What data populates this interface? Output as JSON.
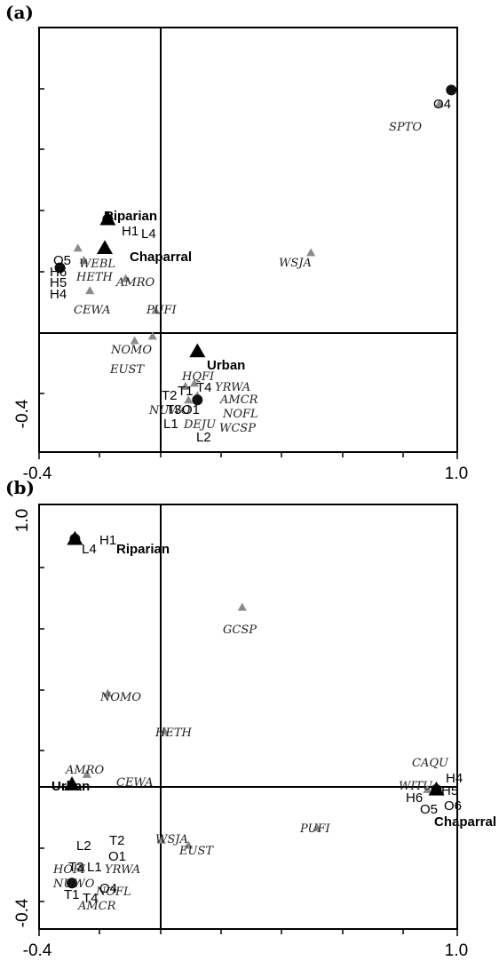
{
  "chart_data": [
    {
      "type": "scatter",
      "panel_label": "(a)",
      "xlim": [
        -0.4,
        1.0
      ],
      "x_tick_labels": [
        "-0.4",
        "1.0"
      ],
      "y_tick_labels": [
        "-0.4"
      ],
      "habitats": [
        {
          "label": "Riparian",
          "x": -0.17,
          "y": 0.75
        },
        {
          "label": "Chaparral",
          "x": -0.18,
          "y": 0.56
        },
        {
          "label": "Urban",
          "x": 0.13,
          "y": -0.12
        }
      ],
      "species": [
        {
          "label": "SPTO",
          "x": 0.94,
          "y": 1.51
        },
        {
          "label": "WSJA",
          "x": 0.51,
          "y": 0.53
        },
        {
          "label": "WEBL",
          "x": -0.27,
          "y": 0.56
        },
        {
          "label": "HETH",
          "x": -0.25,
          "y": 0.48
        },
        {
          "label": "AMRO",
          "x": -0.11,
          "y": 0.36
        },
        {
          "label": "CEWA",
          "x": -0.23,
          "y": 0.28
        },
        {
          "label": "PUFI",
          "x": -0.01,
          "y": 0.15
        },
        {
          "label": "NOMO",
          "x": -0.08,
          "y": -0.05
        },
        {
          "label": "EUST",
          "x": -0.02,
          "y": -0.02
        },
        {
          "label": "HQFI",
          "x": 0.09,
          "y": -0.35
        },
        {
          "label": "YRWA",
          "x": 0.12,
          "y": -0.33
        },
        {
          "label": "AMCR",
          "x": 0.13,
          "y": -0.41
        },
        {
          "label": "NUWO",
          "x": 0.1,
          "y": -0.44
        },
        {
          "label": "NOFL",
          "x": 0.13,
          "y": -0.44
        },
        {
          "label": "DEJU",
          "x": 0.13,
          "y": -0.44
        },
        {
          "label": "WCSP",
          "x": 0.13,
          "y": -0.44
        }
      ],
      "sites": [
        {
          "labels": [
            "O4"
          ],
          "x": 0.98,
          "y": 1.6
        },
        {
          "labels": [
            "H1",
            "L4"
          ],
          "x": -0.17,
          "y": 0.75
        },
        {
          "labels": [
            "O5",
            "H6",
            "H5",
            "H4"
          ],
          "x": -0.33,
          "y": 0.43
        },
        {
          "labels": [
            "T2",
            "T1",
            "T4",
            "T3",
            "O1",
            "L1",
            "L2"
          ],
          "x": 0.13,
          "y": -0.44
        }
      ],
      "annotations": [
        "H1",
        "L4",
        "Riparian",
        "Chaparral",
        "O5",
        "H6",
        "H5",
        "H4",
        "O4",
        "Urban",
        "T2",
        "T1",
        "T4",
        "T3",
        "O1",
        "L1",
        "L2"
      ]
    },
    {
      "type": "scatter",
      "panel_label": "(b)",
      "xlim": [
        -0.4,
        1.0
      ],
      "x_tick_labels": [
        "-0.4",
        "1.0"
      ],
      "y_tick_labels": [
        "1.0",
        "-0.4"
      ],
      "habitats": [
        {
          "label": "Riparian",
          "x": -0.28,
          "y": 0.98
        },
        {
          "label": "Urban",
          "x": -0.29,
          "y": 0.01
        },
        {
          "label": "Chaparral",
          "x": 0.93,
          "y": -0.01
        }
      ],
      "species": [
        {
          "label": "GCSP",
          "x": 0.28,
          "y": 0.71
        },
        {
          "label": "NOMO",
          "x": -0.17,
          "y": 0.37
        },
        {
          "label": "HETH",
          "x": 0.02,
          "y": 0.22
        },
        {
          "label": "AMRO",
          "x": -0.24,
          "y": 0.05
        },
        {
          "label": "CEWA",
          "x": -0.24,
          "y": 0.05
        },
        {
          "label": "CAQU",
          "x": 0.93,
          "y": -0.01
        },
        {
          "label": "WITU",
          "x": 0.9,
          "y": -0.01
        },
        {
          "label": "PUFI",
          "x": 0.53,
          "y": -0.16
        },
        {
          "label": "WSJA",
          "x": 0.01,
          "y": -0.21
        },
        {
          "label": "EUST",
          "x": 0.1,
          "y": -0.23
        },
        {
          "label": "HOFI",
          "x": -0.26,
          "y": -0.32
        },
        {
          "label": "NUWO",
          "x": -0.26,
          "y": -0.32
        },
        {
          "label": "YRWA",
          "x": -0.26,
          "y": -0.32
        },
        {
          "label": "NOFL",
          "x": -0.26,
          "y": -0.32
        },
        {
          "label": "AMCR",
          "x": -0.26,
          "y": -0.32
        }
      ],
      "sites": [
        {
          "labels": [
            "L4",
            "H1"
          ],
          "x": -0.28,
          "y": 0.98
        },
        {
          "labels": [
            "H4",
            "H5",
            "H6",
            "O5",
            "O6"
          ],
          "x": 0.93,
          "y": -0.01
        },
        {
          "labels": [
            "L2",
            "T2",
            "O1",
            "T3",
            "L1",
            "T1",
            "T4",
            "O4"
          ],
          "x": -0.29,
          "y": -0.38
        }
      ],
      "annotations": [
        "L4",
        "H1",
        "Riparian",
        "Urban",
        "H4",
        "H5",
        "H6",
        "O5",
        "O6",
        "Chaparral",
        "L2",
        "T2",
        "O1",
        "T3",
        "L1",
        "T1",
        "T4",
        "O4"
      ]
    }
  ]
}
